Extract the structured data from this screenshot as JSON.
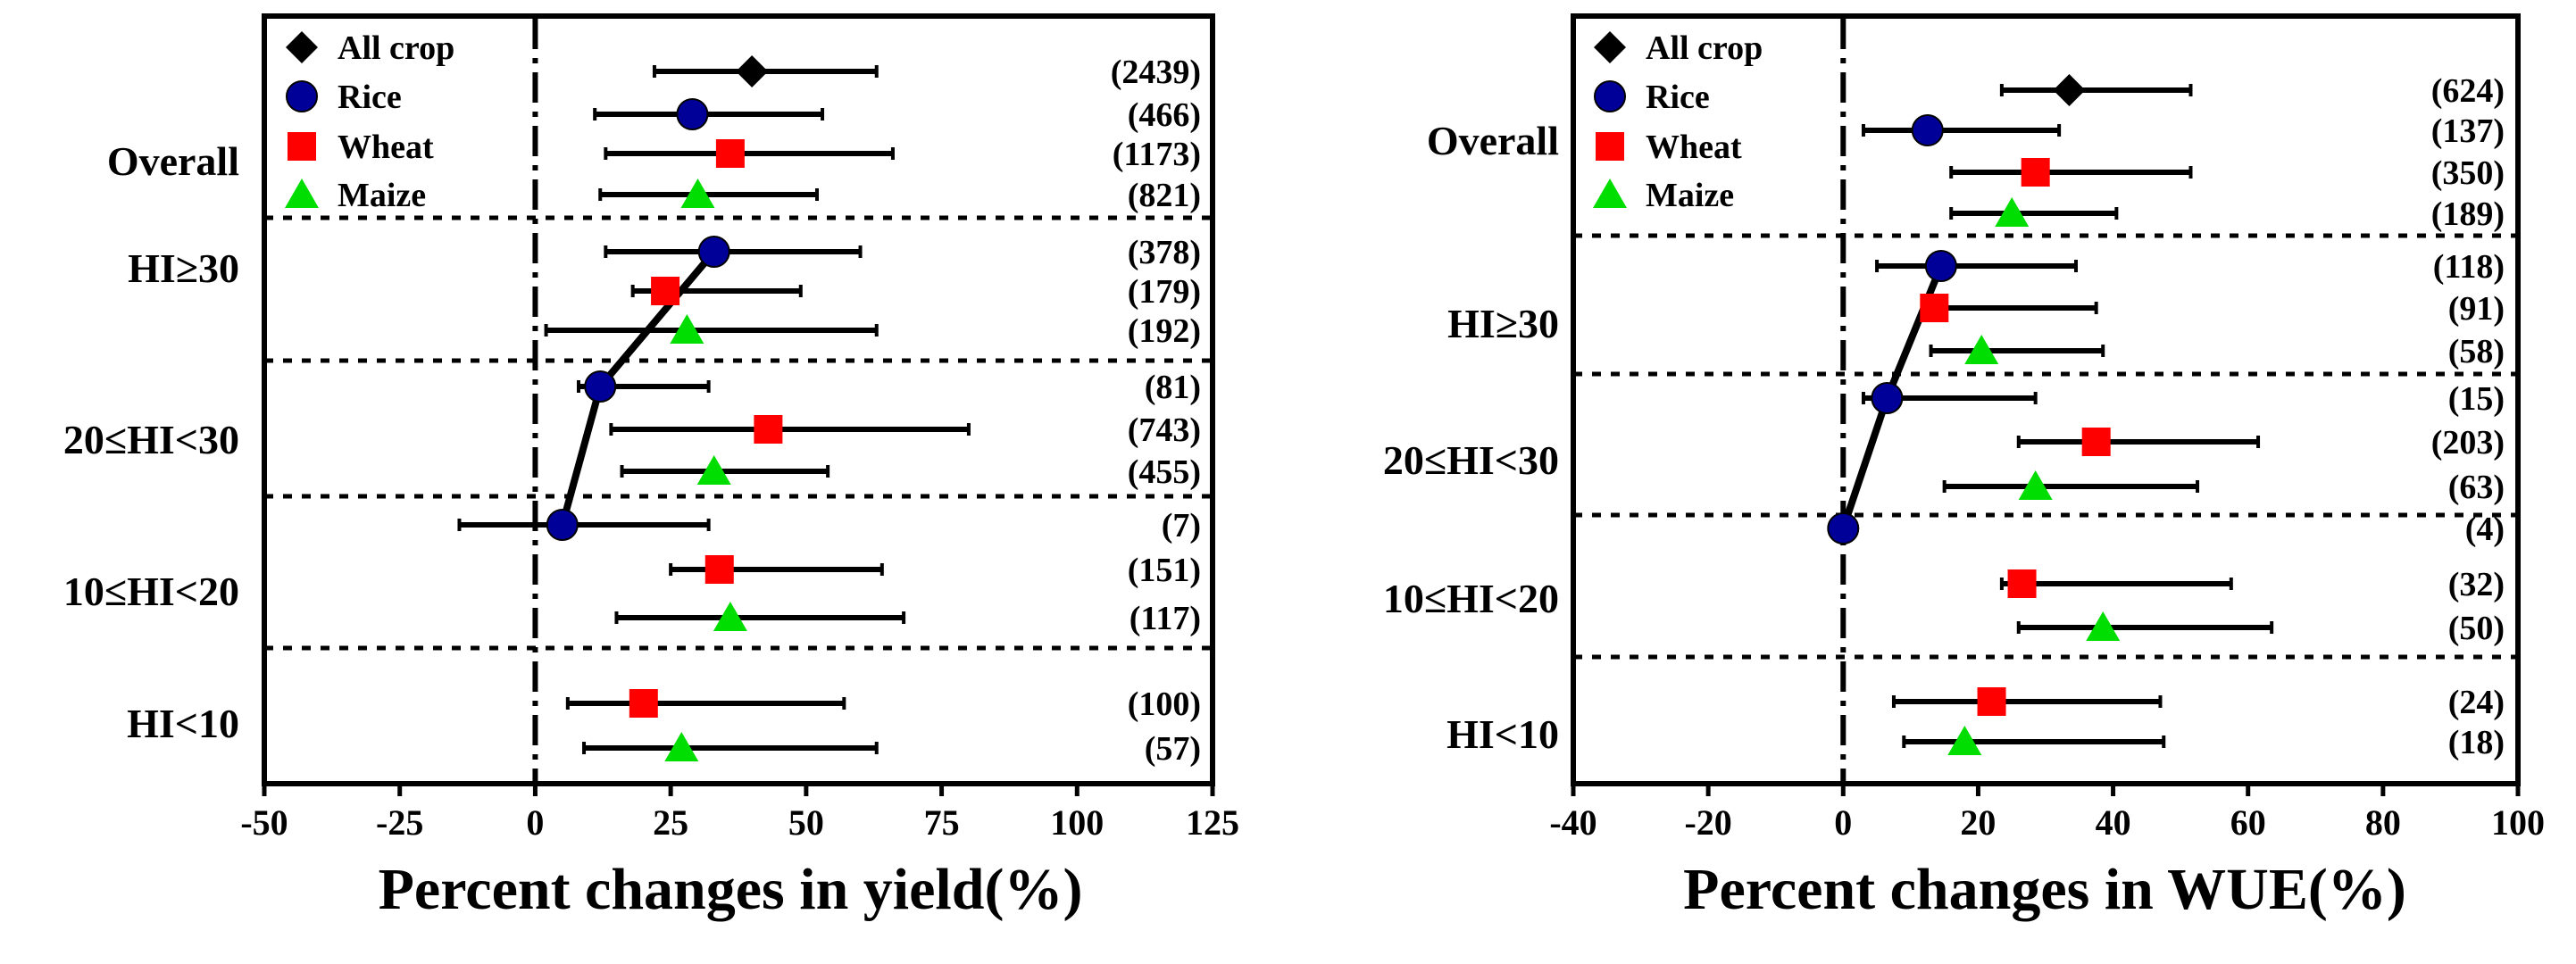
{
  "legend_entries": [
    {
      "name": "All crop",
      "marker": "diamond",
      "color": "#000000"
    },
    {
      "name": "Rice",
      "marker": "circle",
      "color": "#000099"
    },
    {
      "name": "Wheat",
      "marker": "square",
      "color": "#FF0000"
    },
    {
      "name": "Maize",
      "marker": "triangle",
      "color": "#00DD00"
    }
  ],
  "chart_data": [
    {
      "type": "forest",
      "xlabel": "Percent changes in yield(%)",
      "xlim": [
        -50,
        125
      ],
      "xticks": [
        -50,
        -25,
        0,
        25,
        50,
        75,
        100,
        125
      ],
      "xticklabels": [
        "-50",
        "-25",
        "0",
        "25",
        "50",
        "75",
        "100",
        "125"
      ],
      "groups": [
        {
          "label": "Overall",
          "rows": [
            {
              "series": "All crop",
              "mean": 40,
              "low": 22,
              "high": 63,
              "n": "(2439)"
            },
            {
              "series": "Rice",
              "mean": 29,
              "low": 11,
              "high": 53,
              "n": "(466)"
            },
            {
              "series": "Wheat",
              "mean": 36,
              "low": 13,
              "high": 66,
              "n": "(1173)"
            },
            {
              "series": "Maize",
              "mean": 30,
              "low": 12,
              "high": 52,
              "n": "(821)"
            }
          ]
        },
        {
          "label": "HI≥30",
          "rows": [
            {
              "series": "Rice",
              "mean": 33,
              "low": 13,
              "high": 60,
              "n": "(378)"
            },
            {
              "series": "Wheat",
              "mean": 24,
              "low": 18,
              "high": 49,
              "n": "(179)"
            },
            {
              "series": "Maize",
              "mean": 28,
              "low": 2,
              "high": 63,
              "n": "(192)"
            }
          ]
        },
        {
          "label": "20≤HI<30",
          "rows": [
            {
              "series": "Rice",
              "mean": 12,
              "low": 8,
              "high": 32,
              "n": "(81)"
            },
            {
              "series": "Wheat",
              "mean": 43,
              "low": 14,
              "high": 80,
              "n": "(743)"
            },
            {
              "series": "Maize",
              "mean": 33,
              "low": 16,
              "high": 54,
              "n": "(455)"
            }
          ]
        },
        {
          "label": "10≤HI<20",
          "rows": [
            {
              "series": "Rice",
              "mean": 5,
              "low": -14,
              "high": 32,
              "n": "(7)"
            },
            {
              "series": "Wheat",
              "mean": 34,
              "low": 25,
              "high": 64,
              "n": "(151)"
            },
            {
              "series": "Maize",
              "mean": 36,
              "low": 15,
              "high": 68,
              "n": "(117)"
            }
          ]
        },
        {
          "label": "HI<10",
          "rows": [
            {
              "series": "Wheat",
              "mean": 20,
              "low": 6,
              "high": 57,
              "n": "(100)"
            },
            {
              "series": "Maize",
              "mean": 27,
              "low": 9,
              "high": 63,
              "n": "(57)"
            }
          ]
        }
      ]
    },
    {
      "type": "forest",
      "xlabel": "Percent changes in WUE(%)",
      "xlim": [
        -40,
        100
      ],
      "xticks": [
        -40,
        -20,
        0,
        20,
        40,
        60,
        80,
        100
      ],
      "xticklabels": [
        "-40",
        "-20",
        "0",
        "20",
        "40",
        "60",
        "80",
        "100"
      ],
      "groups": [
        {
          "label": "Overall",
          "rows": [
            {
              "series": "All crop",
              "mean": 33.5,
              "low": 23.5,
              "high": 51.5,
              "n": "(624)"
            },
            {
              "series": "Rice",
              "mean": 12.5,
              "low": 3,
              "high": 32,
              "n": "(137)"
            },
            {
              "series": "Wheat",
              "mean": 28.5,
              "low": 16,
              "high": 51.5,
              "n": "(350)"
            },
            {
              "series": "Maize",
              "mean": 25,
              "low": 16,
              "high": 40.5,
              "n": "(189)"
            }
          ]
        },
        {
          "label": "HI≥30",
          "rows": [
            {
              "series": "Rice",
              "mean": 14.5,
              "low": 5,
              "high": 34.5,
              "n": "(118)"
            },
            {
              "series": "Wheat",
              "mean": 13.5,
              "low": 12,
              "high": 37.5,
              "n": "(91)"
            },
            {
              "series": "Maize",
              "mean": 20.5,
              "low": 13,
              "high": 38.5,
              "n": "(58)"
            }
          ]
        },
        {
          "label": "20≤HI<30",
          "rows": [
            {
              "series": "Rice",
              "mean": 6.5,
              "low": 3,
              "high": 28.5,
              "n": "(15)"
            },
            {
              "series": "Wheat",
              "mean": 37.5,
              "low": 26,
              "high": 61.5,
              "n": "(203)"
            },
            {
              "series": "Maize",
              "mean": 28.5,
              "low": 15,
              "high": 52.5,
              "n": "(63)"
            }
          ]
        },
        {
          "label": "10≤HI<20",
          "rows": [
            {
              "series": "Rice",
              "mean": 0,
              "low": 0,
              "high": 0,
              "n": "(4)"
            },
            {
              "series": "Wheat",
              "mean": 26.5,
              "low": 23.5,
              "high": 57.5,
              "n": "(32)"
            },
            {
              "series": "Maize",
              "mean": 38.5,
              "low": 26,
              "high": 63.5,
              "n": "(50)"
            }
          ]
        },
        {
          "label": "HI<10",
          "rows": [
            {
              "series": "Wheat",
              "mean": 22,
              "low": 7.5,
              "high": 47,
              "n": "(24)"
            },
            {
              "series": "Maize",
              "mean": 18,
              "low": 9,
              "high": 47.5,
              "n": "(18)"
            }
          ]
        }
      ]
    }
  ]
}
